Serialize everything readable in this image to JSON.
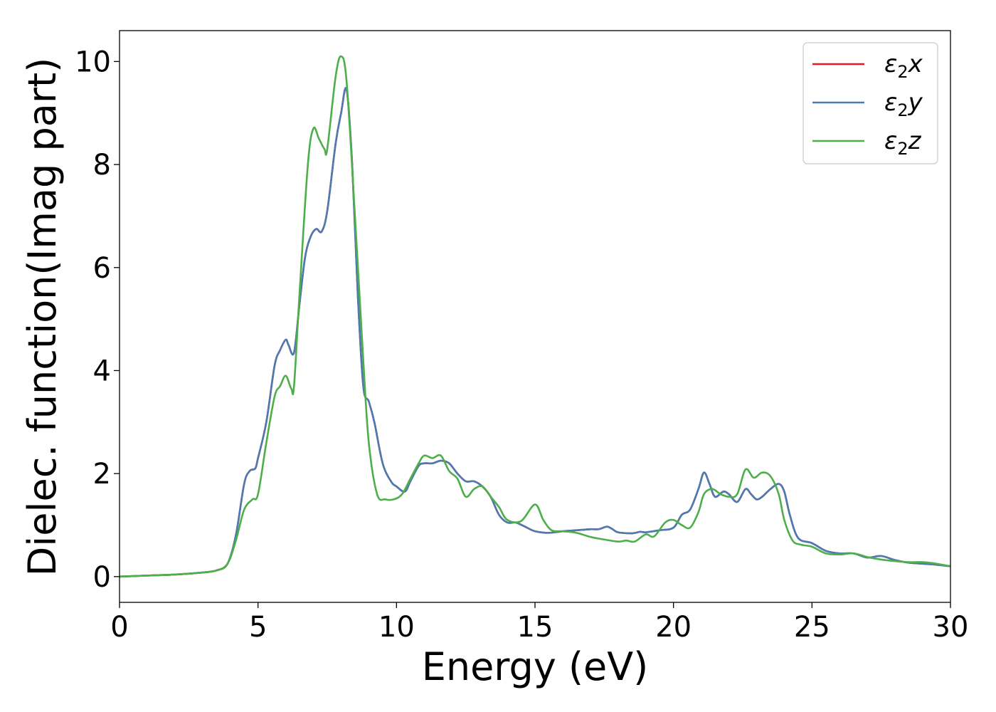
{
  "chart_data": {
    "type": "line",
    "title": "",
    "xlabel": "Energy (eV)",
    "ylabel": "Dielec. function(Imag part)",
    "xlim": [
      0,
      30
    ],
    "ylim": [
      -0.5,
      10.6
    ],
    "xticks": [
      0,
      5,
      10,
      15,
      20,
      25,
      30
    ],
    "yticks": [
      0,
      2,
      4,
      6,
      8,
      10
    ],
    "grid": false,
    "legend_position": "top-right",
    "series": [
      {
        "name": "ε2x",
        "name_parts": {
          "base": "ε",
          "sub": "2",
          "suffix": "x"
        },
        "color": "#e41a1c",
        "x": [
          0,
          1,
          2,
          3,
          3.5,
          3.9,
          4.2,
          4.5,
          4.7,
          4.9,
          5.0,
          5.3,
          5.6,
          5.8,
          6.0,
          6.1,
          6.3,
          6.5,
          6.7,
          6.9,
          7.1,
          7.3,
          7.5,
          7.8,
          8.0,
          8.2,
          8.4,
          8.6,
          8.8,
          9.0,
          9.2,
          9.5,
          9.8,
          10.0,
          10.3,
          10.5,
          10.8,
          11.0,
          11.3,
          11.6,
          11.9,
          12.2,
          12.5,
          12.8,
          13.1,
          13.4,
          13.7,
          14.0,
          14.3,
          14.6,
          15.0,
          15.5,
          16.0,
          16.5,
          17.0,
          17.3,
          17.6,
          17.8,
          18.0,
          18.5,
          18.8,
          19.0,
          19.5,
          20.0,
          20.3,
          20.6,
          20.9,
          21.1,
          21.3,
          21.5,
          21.8,
          22.0,
          22.3,
          22.6,
          22.8,
          23.0,
          23.2,
          23.5,
          23.8,
          24.0,
          24.2,
          24.5,
          25.0,
          25.5,
          26.0,
          26.5,
          27.0,
          27.5,
          28.0,
          28.5,
          29.0,
          29.5,
          30.0
        ],
        "y": [
          0.0,
          0.02,
          0.04,
          0.08,
          0.12,
          0.25,
          0.8,
          1.8,
          2.05,
          2.1,
          2.3,
          3.0,
          4.1,
          4.4,
          4.6,
          4.5,
          4.35,
          5.3,
          6.2,
          6.6,
          6.75,
          6.7,
          7.1,
          8.4,
          9.0,
          9.45,
          8.0,
          5.5,
          3.7,
          3.4,
          3.0,
          2.2,
          1.85,
          1.75,
          1.65,
          1.85,
          2.15,
          2.2,
          2.2,
          2.25,
          2.2,
          2.0,
          1.85,
          1.85,
          1.75,
          1.55,
          1.2,
          1.05,
          1.05,
          0.98,
          0.88,
          0.85,
          0.88,
          0.9,
          0.92,
          0.92,
          0.97,
          0.92,
          0.86,
          0.84,
          0.87,
          0.86,
          0.9,
          0.95,
          1.2,
          1.3,
          1.7,
          2.02,
          1.8,
          1.55,
          1.65,
          1.6,
          1.45,
          1.7,
          1.6,
          1.5,
          1.55,
          1.7,
          1.8,
          1.65,
          1.2,
          0.75,
          0.65,
          0.5,
          0.45,
          0.45,
          0.37,
          0.4,
          0.32,
          0.27,
          0.25,
          0.23,
          0.2
        ]
      },
      {
        "name": "ε2y",
        "name_parts": {
          "base": "ε",
          "sub": "2",
          "suffix": "y"
        },
        "color": "#4a7bb3",
        "x": [
          0,
          1,
          2,
          3,
          3.5,
          3.9,
          4.2,
          4.5,
          4.7,
          4.9,
          5.0,
          5.3,
          5.6,
          5.8,
          6.0,
          6.1,
          6.3,
          6.5,
          6.7,
          6.9,
          7.1,
          7.3,
          7.5,
          7.8,
          8.0,
          8.2,
          8.4,
          8.6,
          8.8,
          9.0,
          9.2,
          9.5,
          9.8,
          10.0,
          10.3,
          10.5,
          10.8,
          11.0,
          11.3,
          11.6,
          11.9,
          12.2,
          12.5,
          12.8,
          13.1,
          13.4,
          13.7,
          14.0,
          14.3,
          14.6,
          15.0,
          15.5,
          16.0,
          16.5,
          17.0,
          17.3,
          17.6,
          17.8,
          18.0,
          18.5,
          18.8,
          19.0,
          19.5,
          20.0,
          20.3,
          20.6,
          20.9,
          21.1,
          21.3,
          21.5,
          21.8,
          22.0,
          22.3,
          22.6,
          22.8,
          23.0,
          23.2,
          23.5,
          23.8,
          24.0,
          24.2,
          24.5,
          25.0,
          25.5,
          26.0,
          26.5,
          27.0,
          27.5,
          28.0,
          28.5,
          29.0,
          29.5,
          30.0
        ],
        "y": [
          0.0,
          0.02,
          0.04,
          0.08,
          0.12,
          0.25,
          0.8,
          1.8,
          2.05,
          2.1,
          2.3,
          3.0,
          4.1,
          4.4,
          4.6,
          4.5,
          4.35,
          5.3,
          6.2,
          6.6,
          6.75,
          6.7,
          7.1,
          8.4,
          9.0,
          9.45,
          8.0,
          5.5,
          3.7,
          3.4,
          3.0,
          2.2,
          1.85,
          1.75,
          1.65,
          1.85,
          2.15,
          2.2,
          2.2,
          2.25,
          2.2,
          2.0,
          1.85,
          1.85,
          1.75,
          1.55,
          1.2,
          1.05,
          1.05,
          0.98,
          0.88,
          0.85,
          0.88,
          0.9,
          0.92,
          0.92,
          0.97,
          0.92,
          0.86,
          0.84,
          0.87,
          0.86,
          0.9,
          0.95,
          1.2,
          1.3,
          1.7,
          2.02,
          1.8,
          1.55,
          1.65,
          1.6,
          1.45,
          1.7,
          1.6,
          1.5,
          1.55,
          1.7,
          1.8,
          1.65,
          1.2,
          0.75,
          0.65,
          0.5,
          0.45,
          0.45,
          0.37,
          0.4,
          0.32,
          0.27,
          0.25,
          0.23,
          0.2
        ]
      },
      {
        "name": "ε2z",
        "name_parts": {
          "base": "ε",
          "sub": "2",
          "suffix": "z"
        },
        "color": "#4daf4a",
        "x": [
          0,
          1,
          2,
          3,
          3.5,
          3.9,
          4.2,
          4.5,
          4.8,
          5.0,
          5.3,
          5.6,
          5.8,
          6.0,
          6.2,
          6.3,
          6.5,
          6.8,
          7.0,
          7.2,
          7.4,
          7.5,
          7.8,
          8.0,
          8.2,
          8.5,
          8.8,
          9.0,
          9.3,
          9.6,
          9.9,
          10.2,
          10.5,
          10.8,
          11.0,
          11.3,
          11.6,
          11.9,
          12.2,
          12.5,
          12.8,
          13.1,
          13.4,
          13.7,
          14.0,
          14.5,
          15.0,
          15.3,
          15.6,
          16.0,
          16.5,
          17.0,
          17.5,
          18.0,
          18.3,
          18.6,
          19.0,
          19.3,
          19.7,
          20.0,
          20.3,
          20.6,
          20.9,
          21.1,
          21.4,
          21.7,
          22.0,
          22.3,
          22.6,
          22.9,
          23.2,
          23.5,
          23.8,
          24.0,
          24.3,
          24.6,
          25.0,
          25.5,
          26.0,
          26.5,
          27.0,
          27.5,
          28.0,
          28.5,
          29.0,
          29.5,
          30.0
        ],
        "y": [
          0.0,
          0.02,
          0.04,
          0.08,
          0.12,
          0.25,
          0.7,
          1.3,
          1.5,
          1.6,
          2.6,
          3.5,
          3.7,
          3.9,
          3.65,
          3.7,
          5.5,
          8.0,
          8.7,
          8.5,
          8.3,
          8.3,
          9.7,
          10.1,
          9.6,
          7.0,
          4.2,
          2.6,
          1.6,
          1.5,
          1.5,
          1.6,
          1.9,
          2.2,
          2.35,
          2.3,
          2.35,
          2.05,
          1.9,
          1.55,
          1.7,
          1.75,
          1.55,
          1.35,
          1.1,
          1.08,
          1.4,
          1.1,
          0.9,
          0.88,
          0.85,
          0.77,
          0.72,
          0.68,
          0.7,
          0.68,
          0.82,
          0.78,
          1.05,
          1.1,
          1.0,
          0.95,
          1.25,
          1.6,
          1.7,
          1.6,
          1.55,
          1.6,
          2.08,
          1.92,
          2.02,
          1.95,
          1.6,
          1.1,
          0.7,
          0.62,
          0.58,
          0.45,
          0.43,
          0.45,
          0.38,
          0.33,
          0.3,
          0.28,
          0.28,
          0.25,
          0.2
        ]
      }
    ]
  }
}
